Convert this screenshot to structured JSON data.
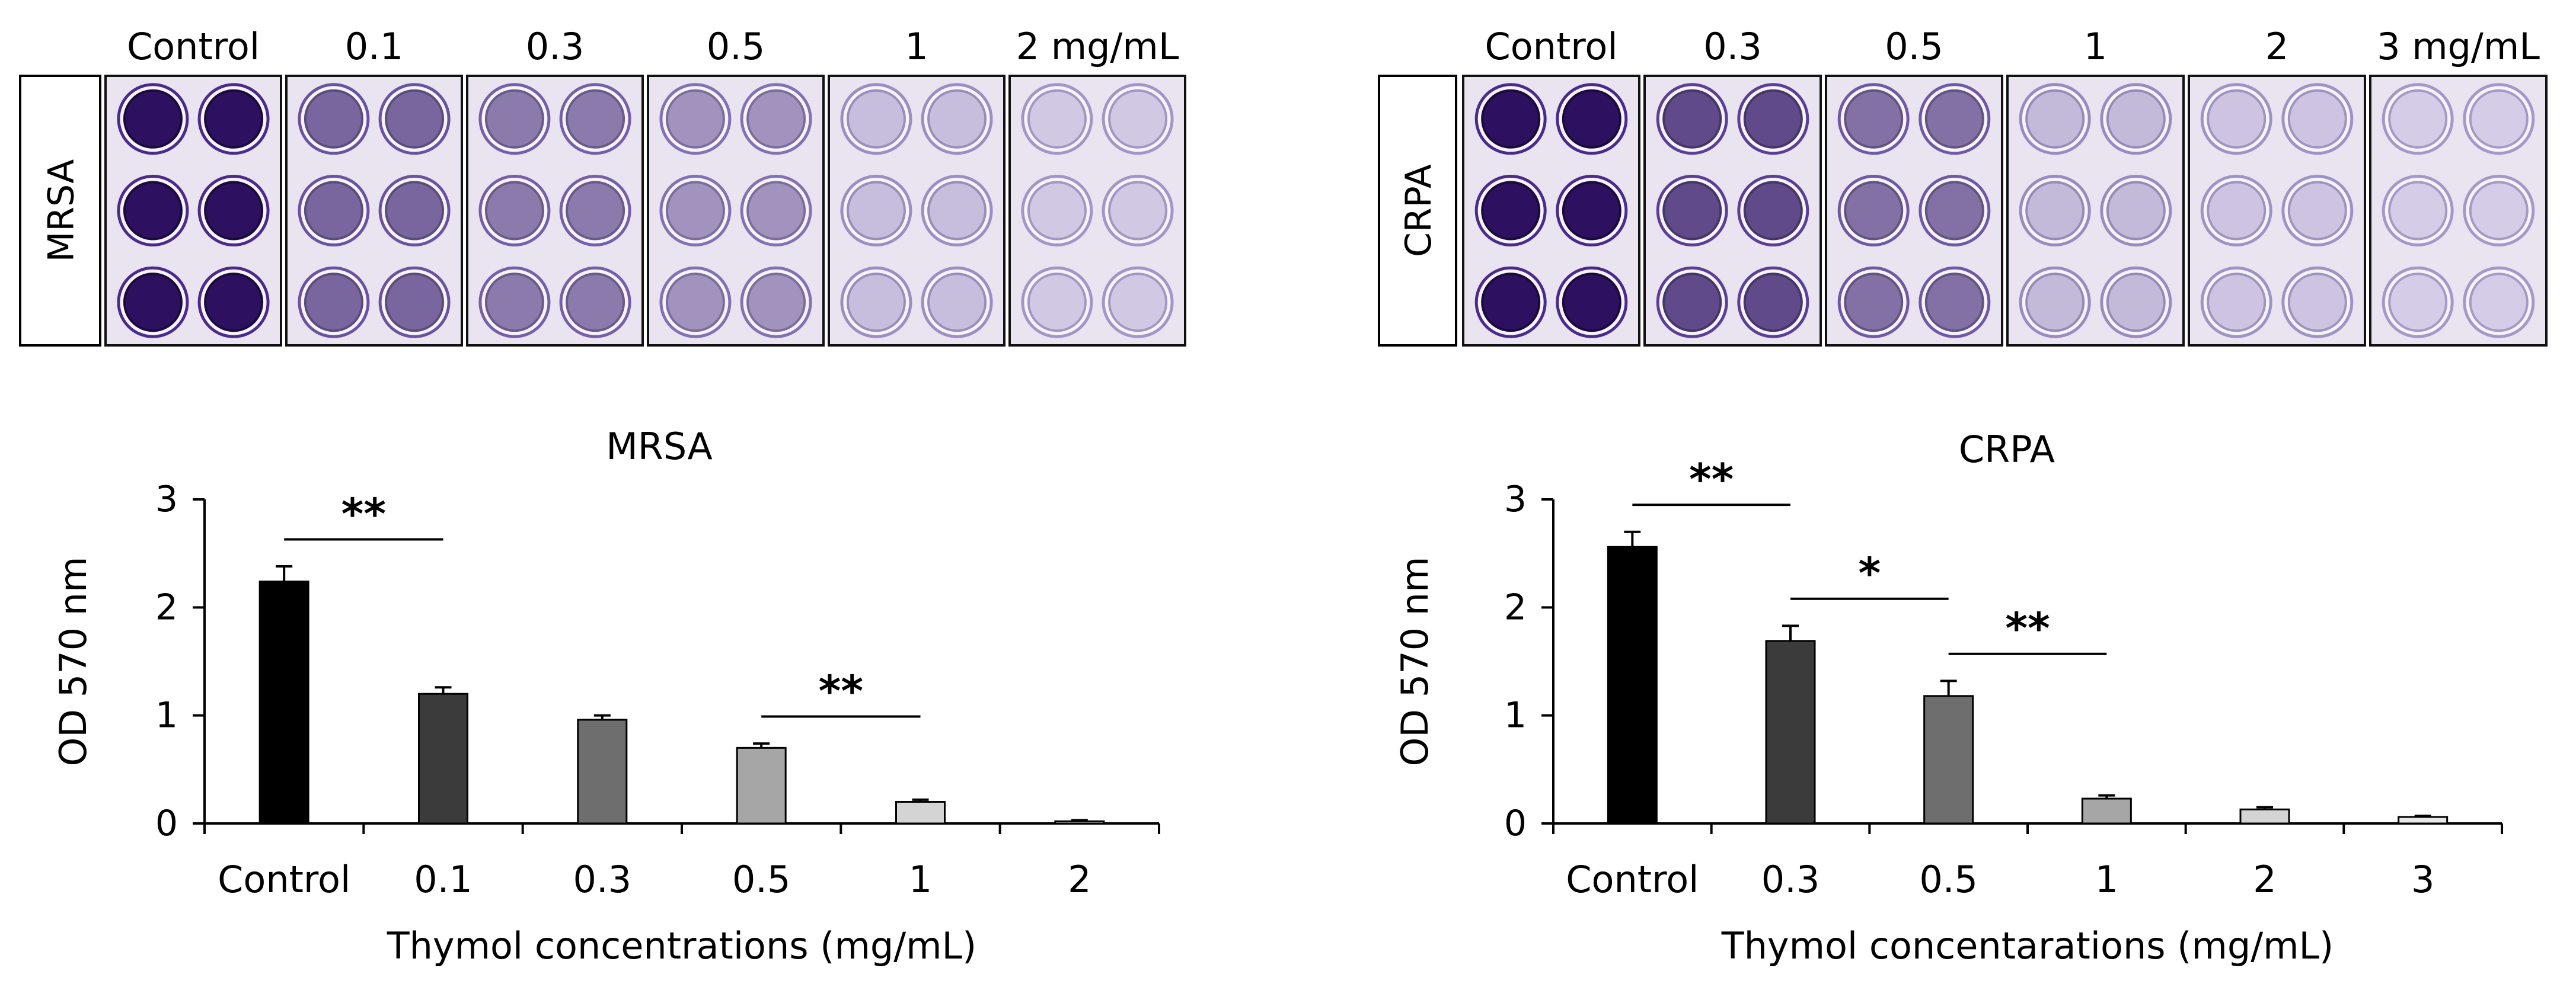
{
  "plates": [
    {
      "side_label": "MRSA",
      "column_headers": [
        "Control",
        "0.1",
        "0.3",
        "0.5",
        "1",
        "2 mg/mL"
      ],
      "stain_level": [
        1.0,
        0.55,
        0.45,
        0.32,
        0.1,
        0.04
      ]
    },
    {
      "side_label": "CRPA",
      "column_headers": [
        "Control",
        "0.3",
        "0.5",
        "1",
        "2",
        "3 mg/mL"
      ],
      "stain_level": [
        1.0,
        0.7,
        0.5,
        0.12,
        0.06,
        0.02
      ]
    }
  ],
  "colors": {
    "stain_dark": "#2d1060",
    "stain_light": "#d8d0ea",
    "plate_bg": "#e9e4f0",
    "bar_fills": [
      "#000000",
      "#3b3b3b",
      "#6e6e6e",
      "#a6a6a6",
      "#d4d4d4",
      "#e8e8e8"
    ]
  },
  "chart_data": [
    {
      "type": "bar",
      "title": "MRSA",
      "xlabel": "Thymol concentrations (mg/mL)",
      "ylabel": "OD 570 nm",
      "ylim": [
        0,
        3
      ],
      "yticks": [
        "0",
        "1",
        "2",
        "3"
      ],
      "categories": [
        "Control",
        "0.1",
        "0.3",
        "0.5",
        "1",
        "2"
      ],
      "values": [
        2.24,
        1.2,
        0.96,
        0.7,
        0.2,
        0.02
      ],
      "errors": [
        0.14,
        0.06,
        0.04,
        0.04,
        0.02,
        0.01
      ],
      "significance": [
        {
          "from": 0,
          "to": 1,
          "label": "**"
        },
        {
          "from": 3,
          "to": 4,
          "label": "**"
        }
      ]
    },
    {
      "type": "bar",
      "title": "CRPA",
      "xlabel": "Thymol concentarations (mg/mL)",
      "ylabel": "OD 570 nm",
      "ylim": [
        0,
        3
      ],
      "yticks": [
        "0",
        "1",
        "2",
        "3"
      ],
      "categories": [
        "Control",
        "0.3",
        "0.5",
        "1",
        "2",
        "3"
      ],
      "values": [
        2.56,
        1.69,
        1.18,
        0.23,
        0.13,
        0.06
      ],
      "errors": [
        0.14,
        0.14,
        0.14,
        0.03,
        0.02,
        0.01
      ],
      "significance": [
        {
          "from": 0,
          "to": 1,
          "label": "**"
        },
        {
          "from": 1,
          "to": 2,
          "label": "*"
        },
        {
          "from": 2,
          "to": 3,
          "label": "**"
        }
      ]
    }
  ]
}
